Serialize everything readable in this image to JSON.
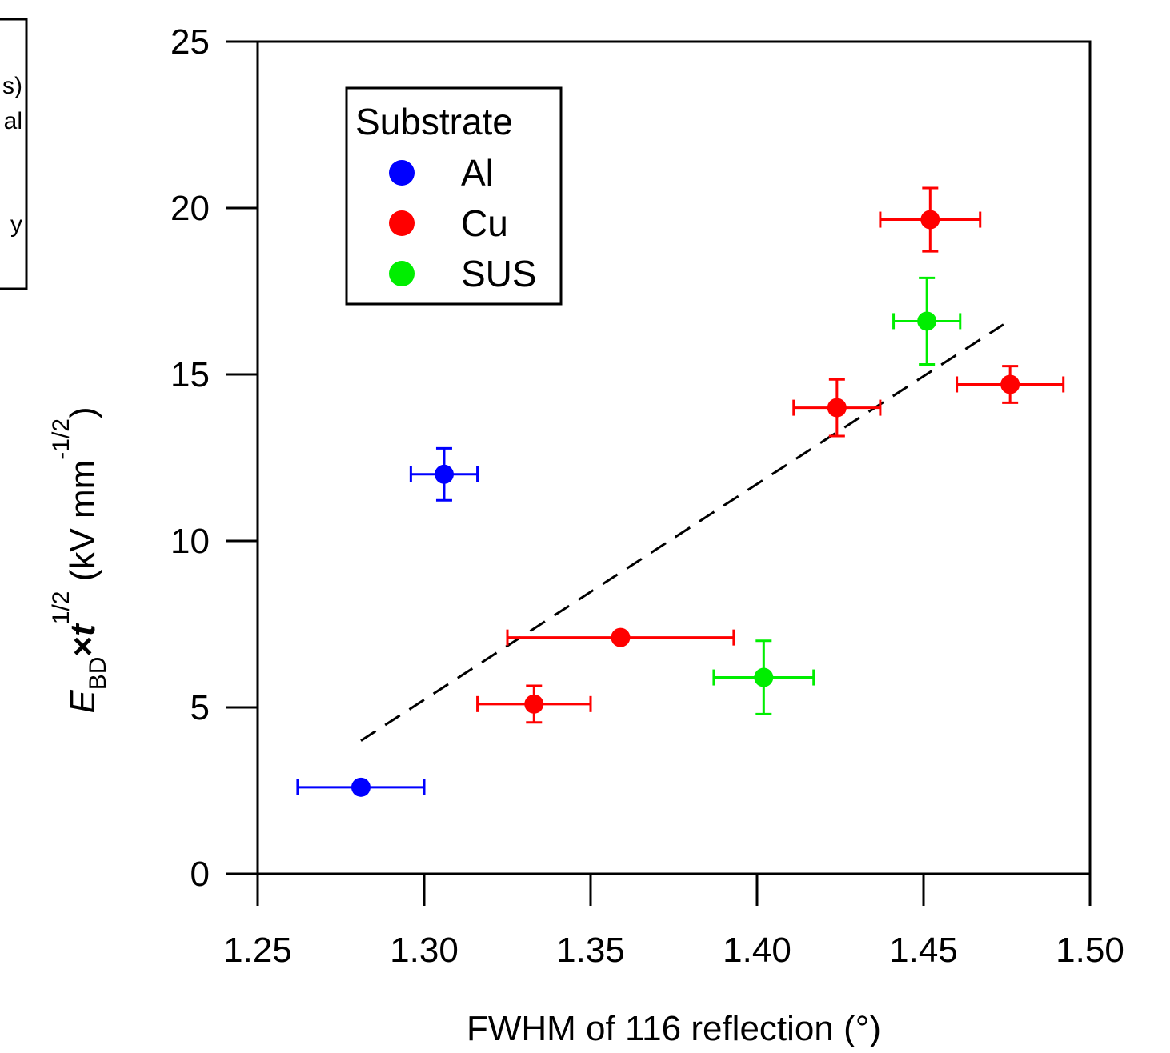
{
  "chart_data": {
    "type": "scatter",
    "xlabel": "FWHM of 116 reflection (°)",
    "ylabel": {
      "symbol": "E",
      "subscript": "BD",
      "times": "×",
      "t": "t",
      "t_exponent": "1/2",
      "unit_open": " (kV mm",
      "unit_exponent": "-1/2",
      "unit_close": ")"
    },
    "xlim": [
      1.25,
      1.5
    ],
    "ylim": [
      0,
      25
    ],
    "xticks": [
      "1.25",
      "1.30",
      "1.35",
      "1.40",
      "1.45",
      "1.50"
    ],
    "yticks": [
      "0",
      "5",
      "10",
      "15",
      "20",
      "25"
    ],
    "grid": false,
    "legend": {
      "title": "Substrate",
      "position": "top-left"
    },
    "series": [
      {
        "name": "Al",
        "color": "#0000ff",
        "points": [
          {
            "x": 1.281,
            "y": 2.6,
            "xerr": 0.019,
            "yerr": 0
          },
          {
            "x": 1.306,
            "y": 12.0,
            "xerr": 0.01,
            "yerr": 0.78
          }
        ]
      },
      {
        "name": "Cu",
        "color": "#ff0000",
        "points": [
          {
            "x": 1.333,
            "y": 5.1,
            "xerr": 0.017,
            "yerr": 0.55
          },
          {
            "x": 1.359,
            "y": 7.1,
            "xerr": 0.034,
            "yerr": 0.1
          },
          {
            "x": 1.424,
            "y": 14.0,
            "xerr": 0.013,
            "yerr": 0.85
          },
          {
            "x": 1.452,
            "y": 19.65,
            "xerr": 0.015,
            "yerr": 0.95
          },
          {
            "x": 1.476,
            "y": 14.7,
            "xerr": 0.016,
            "yerr": 0.55
          }
        ]
      },
      {
        "name": "SUS",
        "color": "#00ee00",
        "points": [
          {
            "x": 1.402,
            "y": 5.9,
            "xerr": 0.015,
            "yerr": 1.1
          },
          {
            "x": 1.451,
            "y": 16.6,
            "xerr": 0.01,
            "yerr": 1.3
          }
        ]
      }
    ],
    "fit_line": {
      "style": "dashed",
      "color": "#000000",
      "x": [
        1.281,
        1.474
      ],
      "y": [
        4.0,
        16.5
      ]
    }
  },
  "cropped_fragment": {
    "lines": [
      "s)",
      "al",
      "y"
    ]
  }
}
